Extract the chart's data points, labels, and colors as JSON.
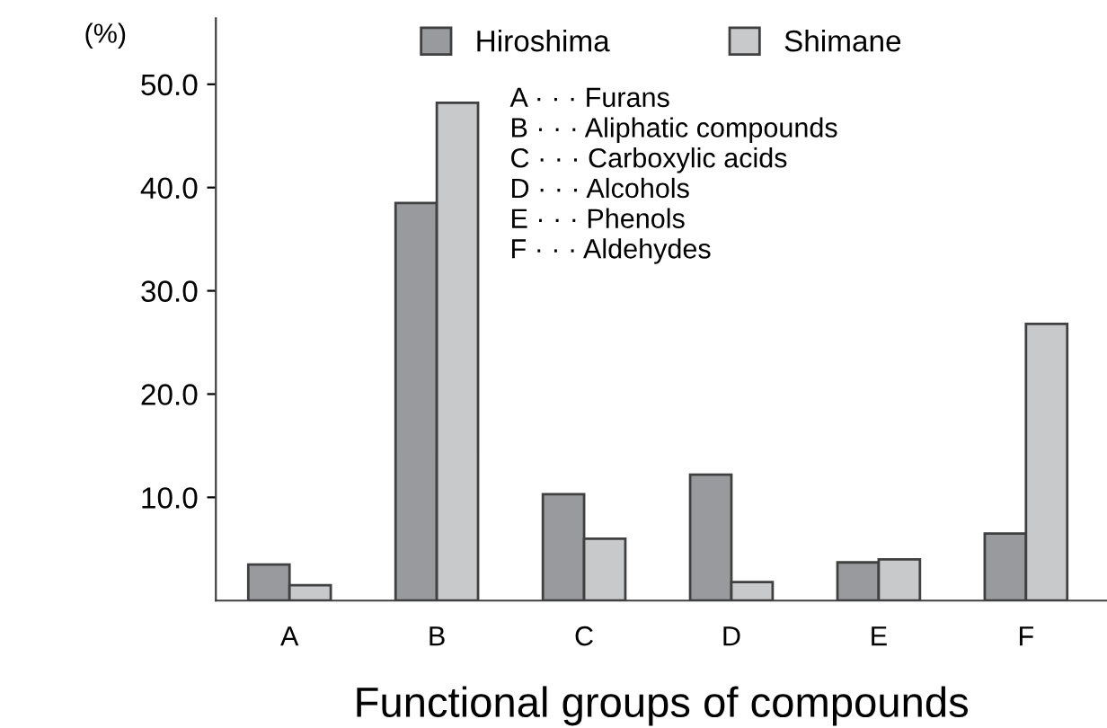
{
  "chart_data": {
    "type": "bar",
    "xlabel": "Functional groups of compounds",
    "ylabel": "(%)",
    "categories": [
      "A",
      "B",
      "C",
      "D",
      "E",
      "F"
    ],
    "series": [
      {
        "name": "Hiroshima",
        "color": "#999a9e",
        "values": [
          3.5,
          38.5,
          10.3,
          12.2,
          3.7,
          6.5
        ]
      },
      {
        "name": "Shimane",
        "color": "#c8c9cb",
        "values": [
          1.5,
          48.2,
          6.0,
          1.8,
          4.0,
          26.8
        ]
      }
    ],
    "ylim": [
      0,
      56.4
    ],
    "yticks": [
      {
        "value": 10,
        "label": "10.0"
      },
      {
        "value": 20,
        "label": "20.0"
      },
      {
        "value": 30,
        "label": "30.0"
      },
      {
        "value": 40,
        "label": "40.0"
      },
      {
        "value": 50,
        "label": "50.0"
      }
    ],
    "annotations": [
      "A · · · Furans",
      "B · · · Aliphatic compounds",
      "C · · · Carboxylic acids",
      "D · · · Alcohols",
      "E · · · Phenols",
      "F · · · Aldehydes"
    ],
    "legend": "top",
    "grid": false
  }
}
